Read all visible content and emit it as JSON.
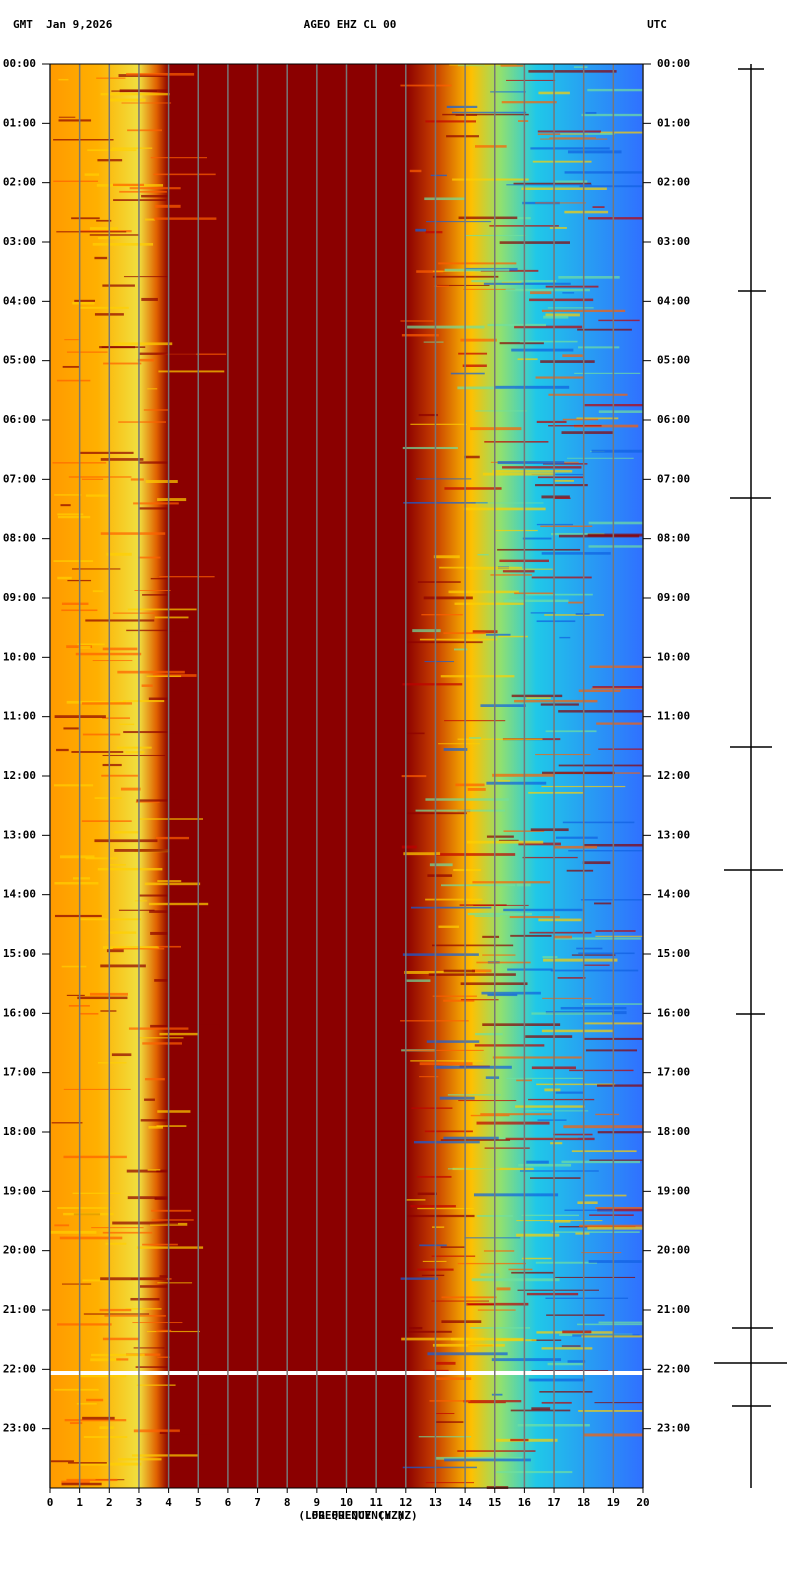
{
  "chart_data": {
    "type": "spectrogram",
    "title": "AGEO EHZ CL 00",
    "left_label": "GMT  Jan 9,2026",
    "right_label": "UTC",
    "x_label": "FREQUENCY (HZ)",
    "x_label_2": "(LOG FREQUENCY HZ)",
    "xlim": [
      0,
      20
    ],
    "xticks": [
      0,
      1,
      2,
      3,
      4,
      5,
      6,
      7,
      8,
      9,
      10,
      11,
      12,
      13,
      14,
      15,
      16,
      17,
      18,
      19,
      20
    ],
    "ylim": [
      0,
      24
    ],
    "yticks": [
      {
        "value": 0,
        "label": "00:00"
      },
      {
        "value": 1,
        "label": "01:00"
      },
      {
        "value": 2,
        "label": "02:00"
      },
      {
        "value": 3,
        "label": "03:00"
      },
      {
        "value": 4,
        "label": "04:00"
      },
      {
        "value": 5,
        "label": "05:00"
      },
      {
        "value": 6,
        "label": "06:00"
      },
      {
        "value": 7,
        "label": "07:00"
      },
      {
        "value": 8,
        "label": "08:00"
      },
      {
        "value": 9,
        "label": "09:00"
      },
      {
        "value": 10,
        "label": "10:00"
      },
      {
        "value": 11,
        "label": "11:00"
      },
      {
        "value": 12,
        "label": "12:00"
      },
      {
        "value": 13,
        "label": "13:00"
      },
      {
        "value": 14,
        "label": "14:00"
      },
      {
        "value": 15,
        "label": "15:00"
      },
      {
        "value": 16,
        "label": "16:00"
      },
      {
        "value": 17,
        "label": "17:00"
      },
      {
        "value": 18,
        "label": "18:00"
      },
      {
        "value": 19,
        "label": "19:00"
      },
      {
        "value": 20,
        "label": "20:00"
      },
      {
        "value": 21,
        "label": "21:00"
      },
      {
        "value": 22,
        "label": "22:00"
      },
      {
        "value": 23,
        "label": "23:00"
      }
    ],
    "grid": true
  }
}
